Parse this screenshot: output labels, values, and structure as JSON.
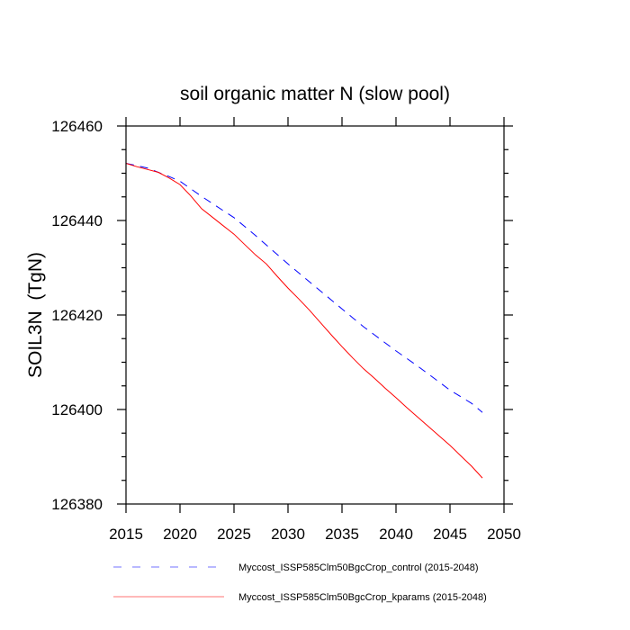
{
  "chart_data": {
    "type": "line",
    "title": "soil organic matter N (slow pool)",
    "xlabel": "",
    "ylabel": "SOIL3N  (TgN)",
    "xlim": [
      2015,
      2050
    ],
    "ylim": [
      126380,
      126460
    ],
    "xticks": [
      2015,
      2020,
      2025,
      2030,
      2035,
      2040,
      2045,
      2050
    ],
    "yticks": [
      126380,
      126400,
      126420,
      126440,
      126460
    ],
    "grid": false,
    "legend_placement": "bottom",
    "x": [
      2015,
      2016,
      2017,
      2018,
      2019,
      2020,
      2021,
      2022,
      2023,
      2024,
      2025,
      2026,
      2027,
      2028,
      2029,
      2030,
      2031,
      2032,
      2033,
      2034,
      2035,
      2036,
      2037,
      2038,
      2039,
      2040,
      2041,
      2042,
      2043,
      2044,
      2045,
      2046,
      2047,
      2048
    ],
    "series": [
      {
        "name": "Myccost_ISSP585Clm50BgcCrop_control (2015-2048)",
        "color": "#0000ff",
        "style": "dashed",
        "values": [
          126452.1,
          126451.6,
          126451.1,
          126450.2,
          126449.3,
          126448.3,
          126446.7,
          126445.1,
          126443.6,
          126442.1,
          126440.6,
          126438.7,
          126436.8,
          126434.8,
          126432.8,
          126430.8,
          126428.9,
          126427.0,
          126425.1,
          126423.2,
          126421.3,
          126419.4,
          126417.5,
          126415.8,
          126414.1,
          126412.4,
          126410.8,
          126409.2,
          126407.5,
          126405.8,
          126404.1,
          126402.7,
          126401.3,
          126399.4
        ]
      },
      {
        "name": "Myccost_ISSP585Clm50BgcCrop_kparams (2015-2048)",
        "color": "#ff0000",
        "style": "solid",
        "values": [
          126452.1,
          126451.4,
          126450.8,
          126450.2,
          126449.0,
          126447.6,
          126445.2,
          126442.5,
          126440.7,
          126438.9,
          126437.1,
          126434.9,
          126432.7,
          126430.8,
          126428.2,
          126425.7,
          126423.4,
          126421.0,
          126418.4,
          126415.8,
          126413.3,
          126410.9,
          126408.6,
          126406.6,
          126404.5,
          126402.5,
          126400.4,
          126398.4,
          126396.4,
          126394.4,
          126392.4,
          126390.2,
          126388.0,
          126385.5
        ]
      }
    ]
  }
}
